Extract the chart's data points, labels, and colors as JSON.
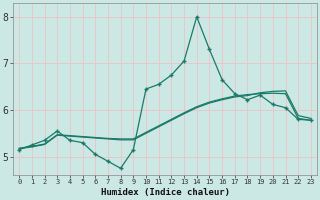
{
  "xlabel": "Humidex (Indice chaleur)",
  "background_color": "#cce8e4",
  "grid_color": "#e8c8c8",
  "line_color": "#1a7a6a",
  "xlim": [
    -0.5,
    23.5
  ],
  "ylim": [
    4.6,
    8.3
  ],
  "xticks": [
    0,
    1,
    2,
    3,
    4,
    5,
    6,
    7,
    8,
    9,
    10,
    11,
    12,
    13,
    14,
    15,
    16,
    17,
    18,
    19,
    20,
    21,
    22,
    23
  ],
  "yticks": [
    5,
    6,
    7,
    8
  ],
  "jagged_x": [
    0,
    1,
    2,
    3,
    4,
    5,
    6,
    7,
    8,
    9,
    10,
    11,
    12,
    13,
    14,
    15,
    16,
    17,
    18,
    19,
    20,
    21,
    22,
    23
  ],
  "jagged_y": [
    5.15,
    5.25,
    5.35,
    5.55,
    5.35,
    5.3,
    5.05,
    4.9,
    4.75,
    5.15,
    6.45,
    6.55,
    6.75,
    7.05,
    8.0,
    7.3,
    6.65,
    6.35,
    6.22,
    6.32,
    6.12,
    6.05,
    5.8,
    5.78
  ],
  "smooth1_x": [
    0,
    1,
    2,
    3,
    4,
    5,
    6,
    7,
    8,
    9,
    10,
    11,
    12,
    13,
    14,
    15,
    16,
    17,
    18,
    19,
    20,
    21,
    22,
    23
  ],
  "smooth1_y": [
    5.18,
    5.22,
    5.27,
    5.47,
    5.45,
    5.43,
    5.41,
    5.39,
    5.38,
    5.38,
    5.52,
    5.66,
    5.8,
    5.94,
    6.07,
    6.17,
    6.24,
    6.3,
    6.33,
    6.35,
    6.36,
    6.35,
    5.82,
    5.78
  ],
  "smooth2_x": [
    0,
    1,
    2,
    3,
    4,
    5,
    6,
    7,
    8,
    9,
    10,
    11,
    12,
    13,
    14,
    15,
    16,
    17,
    18,
    19,
    20,
    21,
    22,
    23
  ],
  "smooth2_y": [
    5.17,
    5.21,
    5.26,
    5.46,
    5.44,
    5.42,
    5.4,
    5.38,
    5.36,
    5.36,
    5.5,
    5.64,
    5.78,
    5.92,
    6.05,
    6.15,
    6.22,
    6.28,
    6.31,
    6.37,
    6.4,
    6.41,
    5.88,
    5.82
  ]
}
